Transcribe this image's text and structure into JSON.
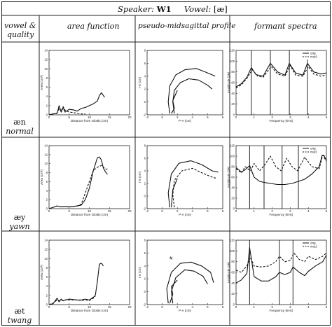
{
  "header": {
    "speaker_label": "Speaker:",
    "speaker_value": "W1",
    "vowel_label": "Vowel:",
    "vowel_value": "[æ]"
  },
  "columns": {
    "c1": "vowel &",
    "c1b": "quality",
    "c2": "area function",
    "c3": "pseudo-midsagittal profile",
    "c4": "formant spectra"
  },
  "rows": [
    {
      "symbol": "æn",
      "quality": "normal"
    },
    {
      "symbol": "æy",
      "quality": "yawn"
    },
    {
      "symbol": "æt",
      "quality": "twang"
    }
  ],
  "panel_text": {
    "area": {
      "ylabel": "Area (cm²)",
      "xlabel": "Distance from Glottis (cm)",
      "yticks": [
        "0",
        "2",
        "4",
        "6",
        "8",
        "10",
        "12",
        "14"
      ],
      "xticks": [
        "0",
        "5",
        "10",
        "15",
        "20"
      ]
    },
    "profile": {
      "ylabel": "I-S (cm)",
      "xlabel": "P-A (cm)",
      "yticks": [
        "-2",
        "0",
        "2",
        "4",
        "6",
        "8"
      ],
      "xticks": [
        "-2",
        "0",
        "2",
        "4",
        "6",
        "8"
      ],
      "marker_twang": "N"
    },
    "spectra": {
      "ylabel": "Amplitude (dB)",
      "xlabel": "Frequency (kHz)",
      "yticks": [
        "0",
        "20",
        "40",
        "60",
        "80",
        "100",
        "120"
      ],
      "xticks": [
        "0",
        "1",
        "2",
        "3",
        "4",
        "5"
      ],
      "legend_orig": "orig.",
      "legend_mod": "mod."
    }
  },
  "chart_data": [
    {
      "row": "normal",
      "panel": "area function",
      "type": "line",
      "x_unit": "cm",
      "xlim": [
        0,
        20
      ],
      "ylim": [
        0,
        14
      ],
      "series": [
        {
          "name": "",
          "x": [
            0,
            1,
            2,
            2.5,
            3,
            3.5,
            4,
            5,
            6,
            7,
            8,
            9,
            10,
            11,
            12,
            12.5,
            13,
            13.5,
            13.8
          ],
          "y": [
            0,
            0.2,
            0.3,
            2.0,
            0.6,
            1.6,
            0.6,
            1.2,
            1.1,
            0.8,
            1.4,
            1.6,
            2.0,
            2.4,
            3.0,
            4.2,
            4.8,
            4.2,
            3.8
          ]
        },
        {
          "name": "",
          "x": [
            0,
            1,
            2,
            2.5,
            3,
            3.5,
            4,
            5,
            6,
            7,
            8,
            9
          ],
          "y": [
            0,
            0.2,
            0.4,
            1.4,
            0.8,
            1.8,
            1.0,
            0.6,
            0.5,
            0.3,
            0.2,
            0.2
          ]
        }
      ]
    },
    {
      "row": "normal",
      "panel": "formant spectra",
      "type": "line",
      "x_unit": "kHz",
      "xlim": [
        0,
        5
      ],
      "ylim": [
        0,
        120
      ],
      "resonance_lines_khz": [
        0.85,
        1.9,
        2.95,
        3.95
      ],
      "series": [
        {
          "name": "orig.",
          "x": [
            0,
            0.3,
            0.6,
            0.85,
            1.1,
            1.5,
            1.9,
            2.3,
            2.7,
            2.95,
            3.3,
            3.7,
            3.95,
            4.3,
            4.7,
            5
          ],
          "y": [
            52,
            58,
            70,
            88,
            75,
            72,
            96,
            80,
            74,
            96,
            78,
            74,
            96,
            80,
            76,
            78
          ]
        },
        {
          "name": "mod.",
          "x": [
            0,
            0.3,
            0.6,
            0.9,
            1.2,
            1.5,
            1.95,
            2.3,
            2.7,
            3.0,
            3.3,
            3.7,
            4.0,
            4.3,
            4.7,
            5
          ],
          "y": [
            50,
            56,
            68,
            84,
            72,
            70,
            90,
            76,
            72,
            92,
            74,
            72,
            90,
            76,
            72,
            74
          ]
        }
      ]
    },
    {
      "row": "yawn",
      "panel": "area function",
      "type": "line",
      "x_unit": "cm",
      "xlim": [
        0,
        20
      ],
      "ylim": [
        0,
        14
      ],
      "series": [
        {
          "name": "",
          "x": [
            0,
            1,
            2,
            3,
            4,
            5,
            6,
            7,
            8,
            9,
            10,
            11,
            12,
            12.5,
            13,
            13.5,
            14,
            14.5
          ],
          "y": [
            0,
            0.3,
            0.6,
            0.4,
            0.5,
            0.4,
            0.5,
            0.6,
            0.8,
            2,
            4.5,
            8.5,
            11.3,
            11.5,
            10.8,
            9,
            8.2,
            7.6
          ]
        },
        {
          "name": "",
          "x": [
            0,
            1,
            2,
            3,
            4,
            5,
            6,
            7,
            8,
            9,
            10,
            11,
            12,
            13,
            13.5,
            14,
            14.5
          ],
          "y": [
            0,
            0.3,
            0.6,
            0.4,
            0.5,
            0.4,
            0.5,
            0.6,
            1.0,
            3.5,
            6,
            8.5,
            9.2,
            9.6,
            9.2,
            8.8,
            8.8
          ]
        }
      ]
    },
    {
      "row": "yawn",
      "panel": "formant spectra",
      "type": "line",
      "x_unit": "kHz",
      "xlim": [
        0,
        5
      ],
      "ylim": [
        0,
        120
      ],
      "resonance_lines_khz": [
        0.75,
        1.55,
        2.55,
        3.45
      ],
      "series": [
        {
          "name": "orig.",
          "x": [
            0,
            0.3,
            0.5,
            0.75,
            1.0,
            1.3,
            1.55,
            1.9,
            2.3,
            2.7,
            3.1,
            3.45,
            3.8,
            4.2,
            4.6,
            4.8,
            5
          ],
          "y": [
            78,
            70,
            74,
            82,
            60,
            52,
            50,
            48,
            46,
            46,
            48,
            52,
            56,
            66,
            80,
            106,
            92
          ]
        },
        {
          "name": "mod.",
          "x": [
            0,
            0.3,
            0.5,
            0.8,
            1.0,
            1.3,
            1.6,
            1.9,
            2.2,
            2.5,
            2.8,
            3.1,
            3.4,
            3.8,
            4.2,
            4.6,
            4.8,
            5
          ],
          "y": [
            76,
            68,
            80,
            72,
            86,
            72,
            84,
            100,
            80,
            72,
            96,
            80,
            72,
            98,
            80,
            76,
            102,
            90
          ]
        }
      ]
    },
    {
      "row": "twang",
      "panel": "area function",
      "type": "line",
      "x_unit": "cm",
      "xlim": [
        0,
        20
      ],
      "ylim": [
        0,
        14
      ],
      "series": [
        {
          "name": "",
          "x": [
            0,
            1,
            2,
            2.5,
            3,
            3.5,
            4,
            5,
            6,
            7,
            8,
            9,
            10,
            11,
            11.5,
            12,
            12.5,
            13,
            13.5
          ],
          "y": [
            0,
            0.2,
            1.4,
            0.6,
            1.2,
            0.8,
            1.0,
            1.2,
            1.1,
            1.0,
            1.0,
            1.2,
            1.0,
            1.6,
            2.0,
            5.0,
            8.8,
            9.0,
            8.4
          ]
        },
        {
          "name": "",
          "x": [
            0,
            1,
            2,
            2.5,
            3,
            3.5,
            4,
            5,
            6,
            7,
            8,
            9,
            10,
            11,
            11.5
          ],
          "y": [
            0,
            0.3,
            1.0,
            0.8,
            1.0,
            0.9,
            1.0,
            1.0,
            1.0,
            1.0,
            0.9,
            1.0,
            0.9,
            1.4,
            1.8
          ]
        }
      ]
    },
    {
      "row": "twang",
      "panel": "formant spectra",
      "type": "line",
      "x_unit": "kHz",
      "xlim": [
        0,
        5
      ],
      "ylim": [
        0,
        120
      ],
      "resonance_lines_khz": [
        0.75,
        2.4,
        3.15
      ],
      "series": [
        {
          "name": "orig.",
          "x": [
            0,
            0.3,
            0.6,
            0.75,
            1.0,
            1.4,
            1.8,
            2.2,
            2.4,
            2.7,
            3.0,
            3.15,
            3.5,
            3.8,
            4.0,
            4.4,
            4.8,
            5
          ],
          "y": [
            40,
            46,
            58,
            106,
            52,
            44,
            44,
            52,
            60,
            56,
            60,
            70,
            60,
            54,
            62,
            72,
            80,
            92
          ]
        },
        {
          "name": "mod.",
          "x": [
            0,
            0.3,
            0.6,
            0.8,
            1.0,
            1.4,
            1.8,
            2.2,
            2.4,
            2.7,
            3.0,
            3.2,
            3.5,
            3.8,
            4.0,
            4.4,
            4.8,
            5
          ],
          "y": [
            64,
            60,
            72,
            88,
            72,
            70,
            72,
            80,
            90,
            80,
            82,
            96,
            84,
            80,
            90,
            84,
            90,
            96
          ]
        }
      ]
    }
  ]
}
